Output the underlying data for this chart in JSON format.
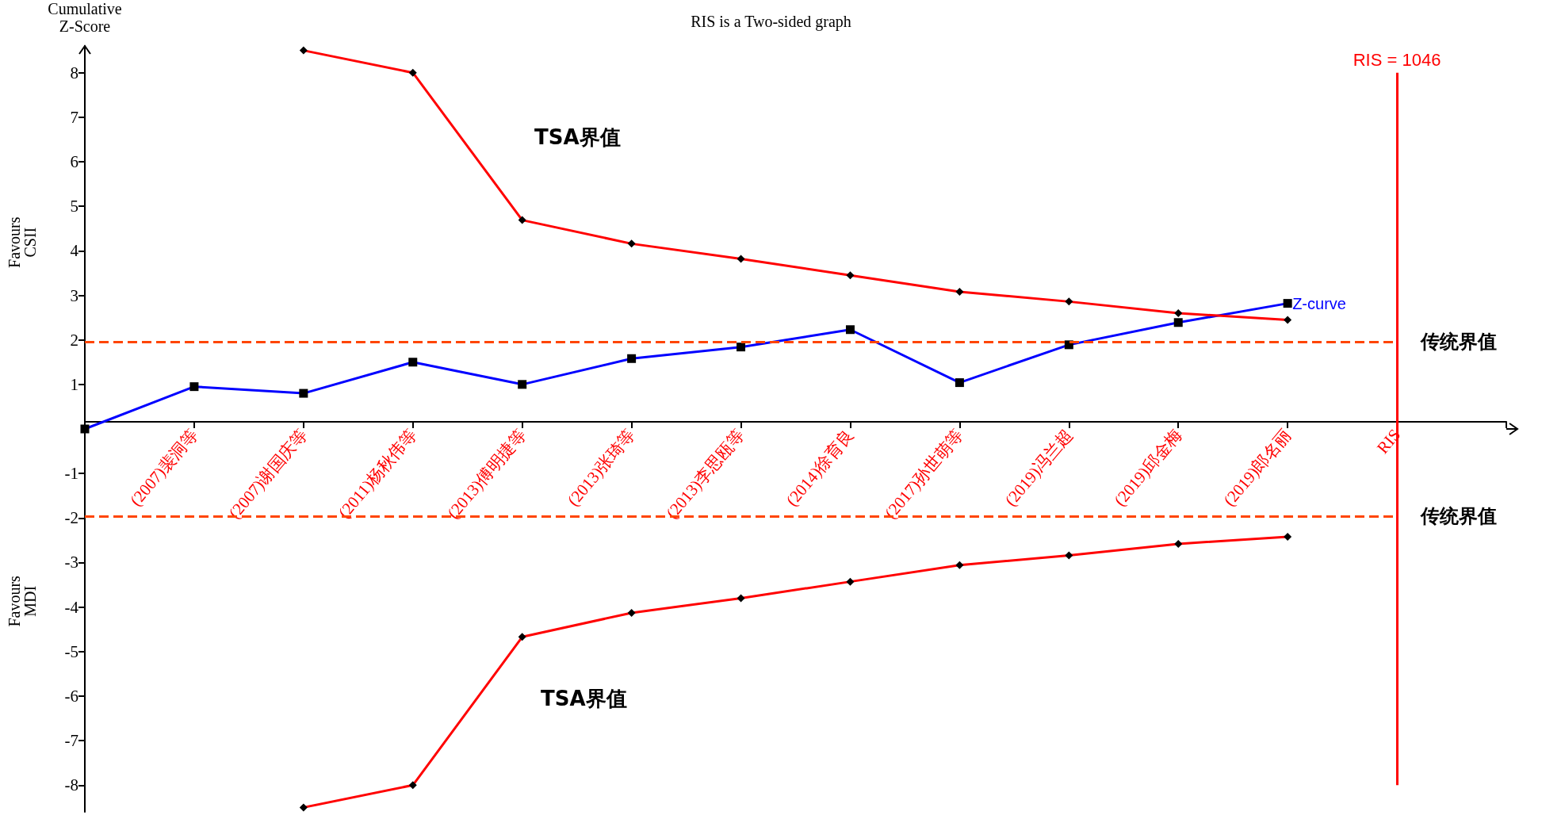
{
  "chart_data": {
    "type": "line",
    "title": "RIS is a Two-sided graph",
    "ylabel": "Cumulative Z-Score",
    "categories": [
      null,
      "(2007)裴洞等",
      "(2007)谢国庆等",
      "(2011)杨秋伟等",
      "(2013)傅明捷等",
      "(2013)张琦等",
      "(2013)李思瓯等",
      "(2014)徐育良",
      "(2017)孙世萌等",
      "(2019)冯兰超",
      "(2019)邱金梅",
      "(2019)郎名丽",
      "RIS",
      null
    ],
    "series": [
      {
        "name": "Z-curve",
        "color": "#0000ff",
        "marker": "square",
        "values": [
          0,
          0.95,
          0.8,
          1.5,
          1.0,
          1.58,
          1.84,
          2.23,
          1.04,
          1.89,
          2.39,
          2.82,
          null,
          null
        ]
      },
      {
        "color": "#ff0000",
        "marker": "diamond",
        "values": [
          null,
          null,
          8.5,
          8.0,
          4.69,
          4.16,
          3.82,
          3.45,
          3.08,
          2.86,
          2.6,
          2.45,
          null,
          null
        ]
      },
      {
        "color": "#ff0000",
        "marker": "diamond",
        "values": [
          null,
          null,
          -8.5,
          -8.0,
          -4.67,
          -4.13,
          -3.8,
          -3.43,
          -3.06,
          -2.84,
          -2.58,
          -2.42,
          null,
          null
        ]
      }
    ],
    "ylim": [
      -8.6,
      8.6
    ],
    "yticks": [
      -8,
      -7,
      -6,
      -5,
      -4,
      -3,
      -2,
      -1,
      1,
      2,
      3,
      4,
      5,
      6,
      7,
      8
    ],
    "ref_lines": [
      {
        "axis": "y",
        "value": 1.96,
        "label": "传统界值",
        "color": "#ff4500",
        "line_style": "dashed"
      },
      {
        "axis": "y",
        "value": -1.96,
        "label": "传统界值",
        "color": "#ff4500",
        "line_style": "dashed"
      },
      {
        "axis": "x",
        "value": "RIS",
        "label": "RIS = 1046",
        "color": "#ff0000",
        "line_style": "solid"
      }
    ],
    "annotations": [
      "Favours CSII",
      "Favours MDI",
      "TSA界值",
      "TSA界值"
    ],
    "grid": false,
    "legend": false
  }
}
